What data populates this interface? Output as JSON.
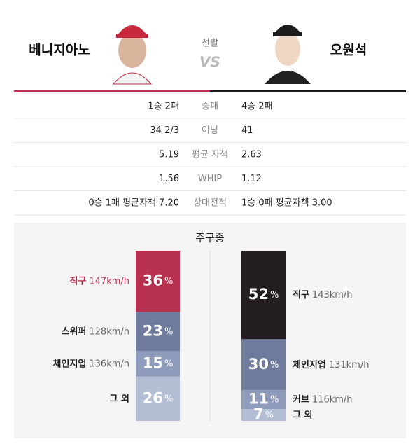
{
  "header": {
    "left_player": "베니지아노",
    "right_player": "오원석",
    "label": "선발",
    "vs": "VS"
  },
  "stats": {
    "rows": [
      {
        "left": "1승 2패",
        "label": "승패",
        "right": "4승 2패"
      },
      {
        "left": "34 2/3",
        "label": "이닝",
        "right": "41"
      },
      {
        "left": "5.19",
        "label": "평균 자책",
        "right": "2.63"
      },
      {
        "left": "1.56",
        "label": "WHIP",
        "right": "1.12"
      },
      {
        "left": "0승 1패 평균자책 7.20",
        "label": "상대전적",
        "right": "1승 0패 평균자책 3.00"
      }
    ]
  },
  "pitch_mix": {
    "title": "주구종",
    "unit": "%",
    "left": [
      {
        "name": "직구",
        "speed": "147km/h",
        "value": 36,
        "color": "#b8324f",
        "label_color": "#b8324f"
      },
      {
        "name": "스위퍼",
        "speed": "128km/h",
        "value": 23,
        "color": "#6e7b9c",
        "label_color": "#222222"
      },
      {
        "name": "체인지업",
        "speed": "136km/h",
        "value": 15,
        "color": "#8e9bba",
        "label_color": "#222222"
      },
      {
        "name": "그 외",
        "value": 26,
        "color": "#b3bdd3",
        "label_color": "#222222"
      }
    ],
    "right": [
      {
        "name": "직구",
        "speed": "143km/h",
        "value": 52,
        "color": "#231f20",
        "label_color": "#222222"
      },
      {
        "name": "체인지업",
        "speed": "131km/h",
        "value": 30,
        "color": "#6e7b9c",
        "label_color": "#222222"
      },
      {
        "name": "커브",
        "speed": "116km/h",
        "value": 11,
        "color": "#8e9bba",
        "label_color": "#222222"
      },
      {
        "name": "그 외",
        "value": 7,
        "color": "#b3bdd3",
        "label_color": "#222222"
      }
    ]
  }
}
